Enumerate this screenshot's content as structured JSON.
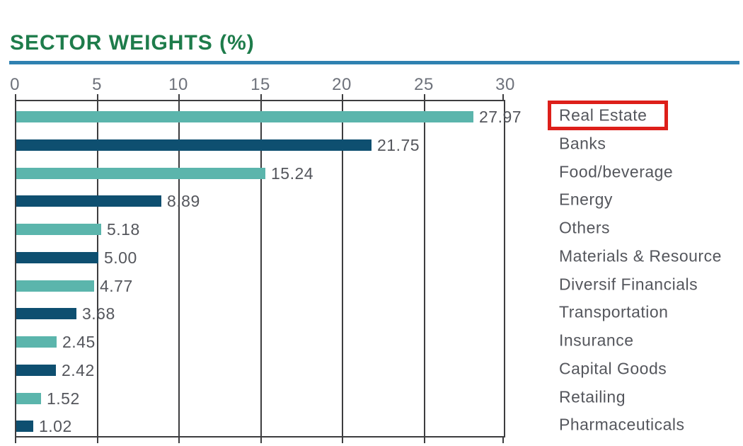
{
  "title": "SECTOR WEIGHTS (%)",
  "colors": {
    "title_green": "#1e7c4b",
    "rule_blue": "#2f81b1",
    "bar_teal": "#5bb5ac",
    "bar_navy": "#0e4f70",
    "grid": "#3d3d3f",
    "axis_text": "#6e727b",
    "label_text": "#54565c",
    "highlight_red": "#dd1f1a"
  },
  "chart_data": {
    "type": "bar",
    "orientation": "horizontal",
    "title": "SECTOR WEIGHTS (%)",
    "xlabel": "",
    "ylabel": "",
    "xlim": [
      0,
      30
    ],
    "xticks": [
      0,
      5,
      10,
      15,
      20,
      25,
      30
    ],
    "grid": true,
    "categories": [
      "Real Estate",
      "Banks",
      "Food/beverage",
      "Energy",
      "Others",
      "Materials & Resource",
      "Diversif Financials",
      "Transportation",
      "Insurance",
      "Capital Goods",
      "Retailing",
      "Pharmaceuticals"
    ],
    "values": [
      27.97,
      21.75,
      15.24,
      8.89,
      5.18,
      5.0,
      4.77,
      3.68,
      2.45,
      2.42,
      1.52,
      1.02
    ],
    "value_labels": [
      "27.97",
      "21.75",
      "15.24",
      "8.89",
      "5.18",
      "5.00",
      "4.77",
      "3.68",
      "2.45",
      "2.42",
      "1.52",
      "1.02"
    ],
    "bar_color_pattern": [
      "#5bb5ac",
      "#0e4f70"
    ],
    "highlighted_category": "Real Estate",
    "legend_position": "right-labels"
  }
}
